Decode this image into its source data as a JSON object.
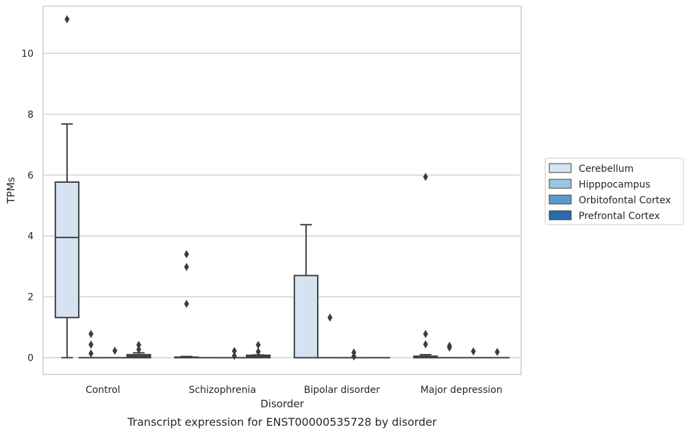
{
  "chart_data": {
    "type": "box",
    "xlabel": "Disorder",
    "ylabel": "TPMs",
    "caption": "Transcript expression for ENST00000535728 by disorder",
    "categories": [
      "Control",
      "Schizophrenia",
      "Bipolar disorder",
      "Major depression"
    ],
    "ylim": [
      -0.55,
      11.55
    ],
    "yticks": [
      0,
      2,
      4,
      6,
      8,
      10
    ],
    "grid": "horizontal",
    "legend_placement": "right",
    "series": [
      {
        "name": "Cerebellum",
        "color": "#d5e2f1",
        "boxes": [
          {
            "q1": 1.32,
            "median": 3.95,
            "q3": 5.77,
            "whislo": 0.0,
            "whishi": 7.68,
            "fliers": [
              11.12
            ]
          },
          {
            "q1": 0.0,
            "median": 0.0,
            "q3": 0.02,
            "whislo": 0.0,
            "whishi": 0.04,
            "fliers": [
              3.4,
              2.98,
              1.77
            ]
          },
          {
            "q1": 0.0,
            "median": 0.0,
            "q3": 2.7,
            "whislo": 0.0,
            "whishi": 4.37,
            "fliers": []
          },
          {
            "q1": 0.0,
            "median": 0.02,
            "q3": 0.05,
            "whislo": 0.0,
            "whishi": 0.1,
            "fliers": [
              5.94,
              0.78,
              0.44
            ]
          }
        ]
      },
      {
        "name": "Hipppocampus",
        "color": "#9ac7e0",
        "boxes": [
          {
            "q1": 0.0,
            "median": 0.0,
            "q3": 0.0,
            "whislo": 0.0,
            "whishi": 0.0,
            "fliers": [
              0.78,
              0.43,
              0.14
            ]
          },
          {
            "q1": 0.0,
            "median": 0.0,
            "q3": 0.0,
            "whislo": 0.0,
            "whishi": 0.0,
            "fliers": []
          },
          {
            "q1": 0.0,
            "median": 0.0,
            "q3": 0.0,
            "whislo": 0.0,
            "whishi": 0.0,
            "fliers": [
              1.32
            ]
          },
          {
            "q1": 0.0,
            "median": 0.0,
            "q3": 0.0,
            "whislo": 0.0,
            "whishi": 0.0,
            "fliers": [
              0.39,
              0.33
            ]
          }
        ]
      },
      {
        "name": "Orbitofontal Cortex",
        "color": "#5b9bc9",
        "boxes": [
          {
            "q1": 0.0,
            "median": 0.0,
            "q3": 0.0,
            "whislo": 0.0,
            "whishi": 0.0,
            "fliers": [
              0.23
            ]
          },
          {
            "q1": 0.0,
            "median": 0.0,
            "q3": 0.0,
            "whislo": 0.0,
            "whishi": 0.0,
            "fliers": [
              0.22,
              0.06
            ]
          },
          {
            "q1": 0.0,
            "median": 0.0,
            "q3": 0.0,
            "whislo": 0.0,
            "whishi": 0.0,
            "fliers": [
              0.17,
              0.04
            ]
          },
          {
            "q1": 0.0,
            "median": 0.0,
            "q3": 0.0,
            "whislo": 0.0,
            "whishi": 0.0,
            "fliers": [
              0.21
            ]
          }
        ]
      },
      {
        "name": "Prefrontal Cortex",
        "color": "#2a6aad",
        "boxes": [
          {
            "q1": 0.0,
            "median": 0.04,
            "q3": 0.1,
            "whislo": 0.0,
            "whishi": 0.16,
            "fliers": [
              0.42,
              0.27
            ]
          },
          {
            "q1": 0.0,
            "median": 0.03,
            "q3": 0.08,
            "whislo": 0.0,
            "whishi": 0.09,
            "fliers": [
              0.42,
              0.2
            ]
          },
          {
            "q1": 0.0,
            "median": 0.0,
            "q3": 0.0,
            "whislo": 0.0,
            "whishi": 0.0,
            "fliers": []
          },
          {
            "q1": 0.0,
            "median": 0.0,
            "q3": 0.0,
            "whislo": 0.0,
            "whishi": 0.0,
            "fliers": [
              0.19
            ]
          }
        ]
      }
    ]
  }
}
